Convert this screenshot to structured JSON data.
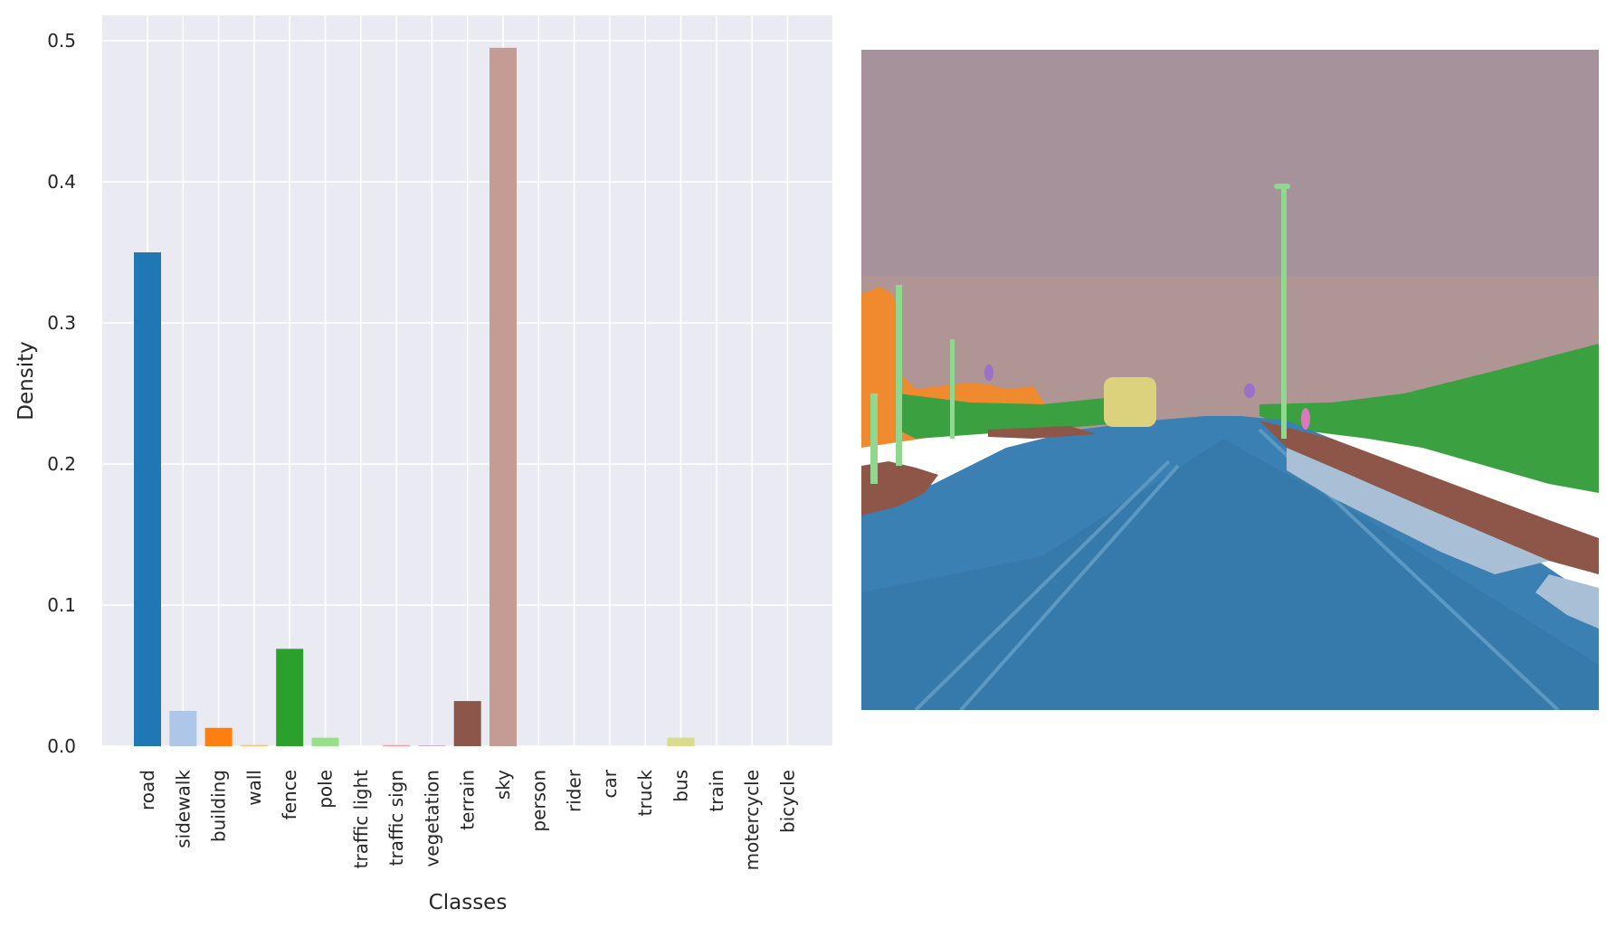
{
  "chart_data": {
    "type": "bar",
    "title": "",
    "xlabel": "Classes",
    "ylabel": "Density",
    "ylim": [
      0,
      0.52
    ],
    "yticks": [
      0.0,
      0.1,
      0.2,
      0.3,
      0.4,
      0.5
    ],
    "ytick_labels": [
      "0.0",
      "0.1",
      "0.2",
      "0.3",
      "0.4",
      "0.5"
    ],
    "grid": true,
    "legend": "none",
    "categories": [
      "road",
      "sidewalk",
      "building",
      "wall",
      "fence",
      "pole",
      "traffic light",
      "traffic sign",
      "vegetation",
      "terrain",
      "sky",
      "person",
      "rider",
      "car",
      "truck",
      "bus",
      "train",
      "motercycle",
      "bicycle"
    ],
    "values": [
      0.35,
      0.025,
      0.013,
      0.0008,
      0.069,
      0.006,
      0.0,
      0.0008,
      0.0003,
      0.032,
      0.495,
      0.0,
      0.0,
      0.0,
      0.0,
      0.006,
      0.0,
      0.0,
      0.0
    ],
    "colors": [
      "#1f77b4",
      "#aec7e8",
      "#ff7f0e",
      "#ffbb78",
      "#2ca02c",
      "#98df8a",
      "#d62728",
      "#ff9896",
      "#9467bd",
      "#8c564b",
      "#c49c94",
      "#e377c2",
      "#f7b6d2",
      "#7f7f7f",
      "#c7c7c7",
      "#dbdb8d",
      "#bcbd22",
      "#17becf",
      "#9edae5"
    ],
    "axes_background": "#eaeaf2",
    "grid_color": "#ffffff"
  },
  "segmentation": {
    "image": "road-scene-segmentation-overlay",
    "palette": {
      "road": "#3a7fb0",
      "sidewalk": "#a8bfd6",
      "building": "#ef8a2e",
      "fence": "#3aa040",
      "pole": "#90d890",
      "terrain": "#8d5648",
      "sky": "#a79096",
      "bus": "#dcd27e",
      "person": "#9a70c8",
      "rider": "#dc78c0"
    }
  }
}
